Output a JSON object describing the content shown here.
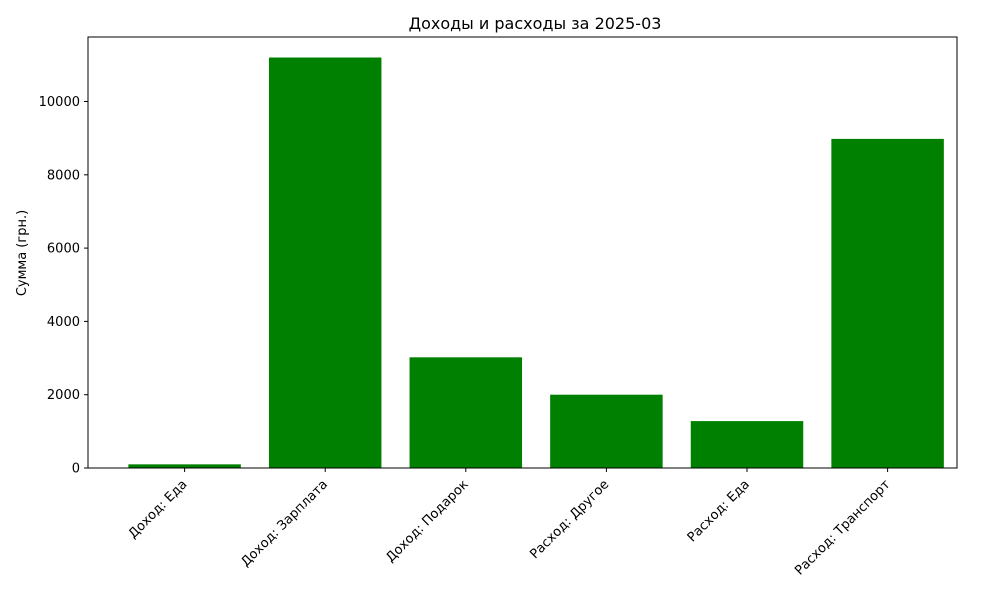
{
  "chart_data": {
    "type": "bar",
    "title": "Доходы и расходы за 2025-03",
    "xlabel": "",
    "ylabel": "Сумма (грн.)",
    "categories": [
      "Доход: Еда",
      "Доход: Зарплата",
      "Доход: Подарок",
      "Расход: Другое",
      "Расход: Еда",
      "Расход: Транспорт"
    ],
    "values": [
      100,
      11200,
      3020,
      2000,
      1280,
      8980
    ],
    "bar_color": "#008000",
    "ylim": [
      0,
      11760
    ],
    "yticks": [
      0,
      2000,
      4000,
      6000,
      8000,
      10000
    ],
    "ytick_labels": [
      "0",
      "2000",
      "4000",
      "6000",
      "8000",
      "10000"
    ],
    "grid": false,
    "legend": "none"
  }
}
